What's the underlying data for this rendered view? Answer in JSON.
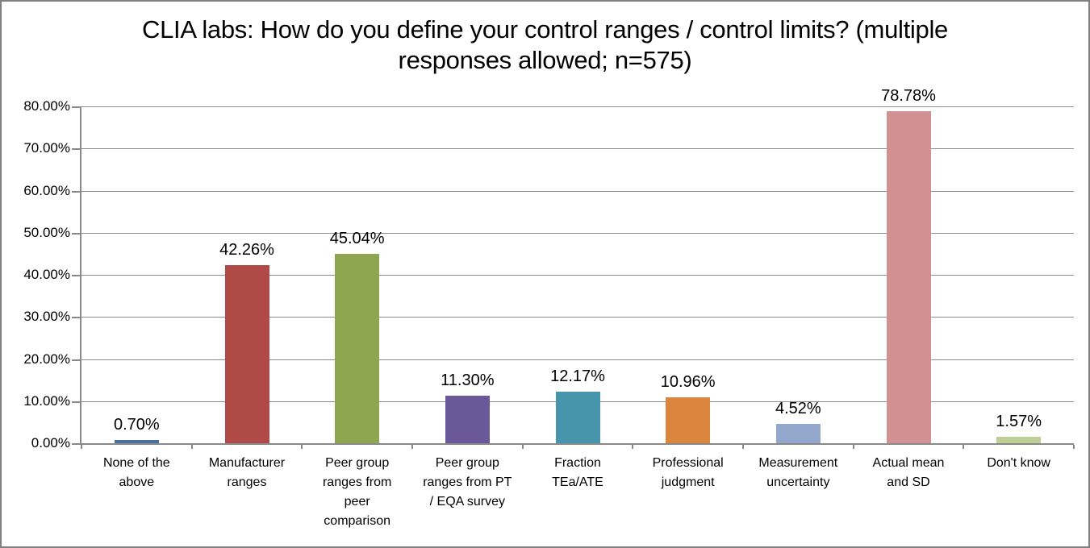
{
  "chart_data": {
    "type": "bar",
    "title": "CLIA labs: How do you define your control ranges / control limits? (multiple responses allowed; n=575)",
    "categories": [
      "None of the above",
      "Manufacturer ranges",
      "Peer group ranges from peer comparison",
      "Peer group ranges from PT / EQA survey",
      "Fraction TEa/ATE",
      "Professional judgment",
      "Measurement uncertainty",
      "Actual mean and SD",
      "Don't know"
    ],
    "values": [
      0.7,
      42.26,
      45.04,
      11.3,
      12.17,
      10.96,
      4.52,
      78.78,
      1.57
    ],
    "data_labels": [
      "0.70%",
      "42.26%",
      "45.04%",
      "11.30%",
      "12.17%",
      "10.96%",
      "4.52%",
      "78.78%",
      "1.57%"
    ],
    "bar_colors": [
      "#46719E",
      "#B04A47",
      "#8EA64F",
      "#6B5898",
      "#4695AA",
      "#DC853D",
      "#94A7CD",
      "#D19091",
      "#BDCF97"
    ],
    "y_ticks": [
      "80.00%",
      "70.00%",
      "60.00%",
      "50.00%",
      "40.00%",
      "30.00%",
      "20.00%",
      "10.00%",
      "0.00%"
    ],
    "ylim": [
      0,
      80
    ],
    "grid": true,
    "legend": false,
    "xlabel": "",
    "ylabel": "",
    "axis_color": "#898989",
    "gridline_color": "#8C8C8C"
  }
}
